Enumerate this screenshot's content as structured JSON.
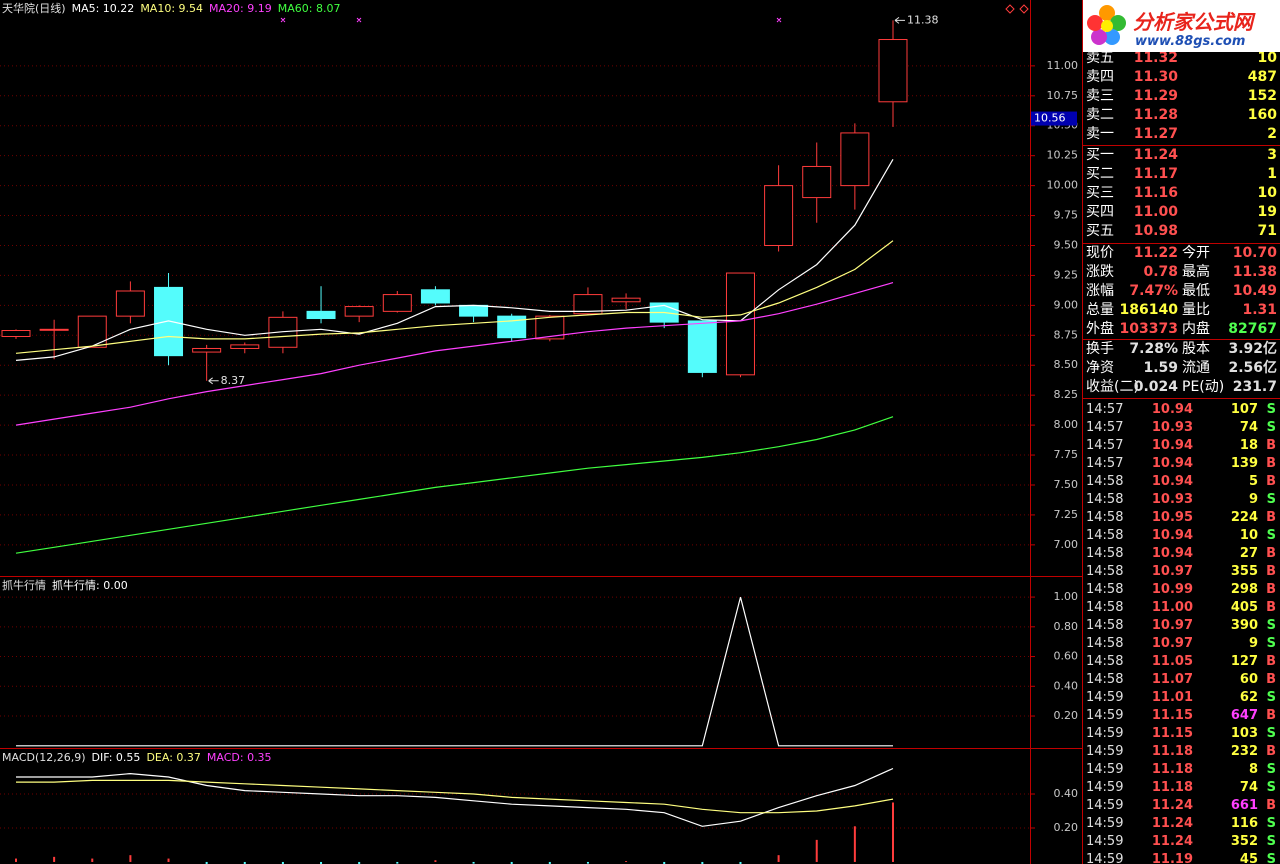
{
  "chart_data": [
    {
      "type": "candlestick",
      "title": "天华院(日线)",
      "open": [
        8.74,
        8.8,
        8.65,
        8.91,
        9.15,
        8.61,
        8.64,
        8.65,
        8.95,
        8.91,
        8.95,
        9.13,
        9.0,
        8.91,
        8.72,
        8.93,
        9.03,
        9.02,
        8.87,
        8.42,
        9.5,
        9.9,
        10.0,
        10.7
      ],
      "high": [
        8.8,
        8.88,
        8.91,
        9.2,
        9.27,
        8.67,
        8.69,
        8.95,
        9.16,
        9.0,
        9.12,
        9.16,
        9.0,
        8.93,
        8.92,
        9.15,
        9.1,
        9.02,
        8.87,
        9.27,
        10.17,
        10.36,
        10.52,
        11.38
      ],
      "low": [
        8.72,
        8.55,
        8.65,
        8.85,
        8.5,
        8.37,
        8.6,
        8.6,
        8.85,
        8.86,
        8.94,
        9.0,
        8.86,
        8.7,
        8.7,
        8.92,
        8.97,
        8.81,
        8.4,
        8.4,
        9.45,
        9.69,
        9.8,
        10.49
      ],
      "close": [
        8.79,
        8.8,
        8.91,
        9.12,
        8.58,
        8.64,
        8.67,
        8.9,
        8.89,
        8.99,
        9.09,
        9.02,
        8.91,
        8.73,
        8.91,
        9.09,
        9.06,
        8.86,
        8.44,
        9.27,
        10.0,
        10.16,
        10.44,
        11.22
      ],
      "up_color": "#ff3c3c",
      "down_color": "#54fcfc",
      "series": [
        {
          "name": "MA5: 10.22",
          "color": "#ffffff",
          "values": [
            8.54,
            8.57,
            8.66,
            8.8,
            8.87,
            8.8,
            8.75,
            8.78,
            8.8,
            8.76,
            8.85,
            8.99,
            9.0,
            8.98,
            8.95,
            8.95,
            8.96,
            9.0,
            8.88,
            8.87,
            9.13,
            9.34,
            9.67,
            10.22
          ]
        },
        {
          "name": "MA10: 9.54",
          "color": "#ffff80",
          "values": [
            8.6,
            8.63,
            8.66,
            8.7,
            8.74,
            8.72,
            8.72,
            8.74,
            8.76,
            8.77,
            8.8,
            8.83,
            8.85,
            8.87,
            8.9,
            8.92,
            8.94,
            8.94,
            8.9,
            8.92,
            9.02,
            9.15,
            9.3,
            9.54
          ]
        },
        {
          "name": "MA20: 9.19",
          "color": "#ff40ff",
          "values": [
            8.0,
            8.05,
            8.1,
            8.15,
            8.22,
            8.28,
            8.33,
            8.38,
            8.43,
            8.5,
            8.56,
            8.62,
            8.66,
            8.7,
            8.74,
            8.78,
            8.81,
            8.83,
            8.85,
            8.87,
            8.93,
            9.01,
            9.1,
            9.19
          ]
        },
        {
          "name": "MA60: 8.07",
          "color": "#40ff40",
          "values": [
            6.93,
            6.98,
            7.03,
            7.08,
            7.13,
            7.18,
            7.23,
            7.28,
            7.33,
            7.38,
            7.43,
            7.48,
            7.52,
            7.56,
            7.6,
            7.64,
            7.67,
            7.7,
            7.73,
            7.77,
            7.82,
            7.88,
            7.96,
            8.07
          ]
        }
      ],
      "ylim": [
        6.74,
        11.55
      ],
      "yticks": [
        {
          "value": 7,
          "label": "7.00"
        },
        {
          "value": 7.25,
          "label": "7.25"
        },
        {
          "value": 7.5,
          "label": "7.50"
        },
        {
          "value": 7.75,
          "label": "7.75"
        },
        {
          "value": 8,
          "label": "8.00"
        },
        {
          "value": 8.25,
          "label": "8.25"
        },
        {
          "value": 8.5,
          "label": "8.50"
        },
        {
          "value": 8.75,
          "label": "8.75"
        },
        {
          "value": 9,
          "label": "9.00"
        },
        {
          "value": 9.25,
          "label": "9.25"
        },
        {
          "value": 9.5,
          "label": "9.50"
        },
        {
          "value": 9.75,
          "label": "9.75"
        },
        {
          "value": 10,
          "label": "10.00"
        },
        {
          "value": 10.25,
          "label": "10.25"
        },
        {
          "value": 10.5,
          "label": "10.50"
        },
        {
          "value": 10.75,
          "label": "10.75"
        },
        {
          "value": 11,
          "label": "11.00"
        }
      ],
      "grid": true,
      "high_label": {
        "value": 11.38,
        "label": "11.38"
      },
      "low_label": {
        "value": 8.37,
        "label": "8.37"
      },
      "crosshair": {
        "value": 10.56,
        "label": "10.56"
      }
    },
    {
      "type": "line",
      "title": "抓牛行情",
      "series": [
        {
          "name": "抓牛行情: 0.00",
          "color": "#ffffff",
          "values": [
            0,
            0,
            0,
            0,
            0,
            0,
            0,
            0,
            0,
            0,
            0,
            0,
            0,
            0,
            0,
            0,
            0,
            0,
            0,
            1,
            0,
            0,
            0,
            0
          ]
        }
      ],
      "ylim": [
        -0.015,
        1.135
      ],
      "yticks": [
        {
          "value": 0.2,
          "label": "0.20"
        },
        {
          "value": 0.4,
          "label": "0.40"
        },
        {
          "value": 0.6,
          "label": "0.60"
        },
        {
          "value": 0.8,
          "label": "0.80"
        },
        {
          "value": 1,
          "label": "1.00"
        }
      ],
      "grid": true
    },
    {
      "type": "line",
      "title": "MACD(12,26,9)",
      "series": [
        {
          "name": "DIF: 0.55",
          "color": "#ffffff",
          "values": [
            0.5,
            0.5,
            0.5,
            0.52,
            0.5,
            0.45,
            0.42,
            0.41,
            0.4,
            0.39,
            0.39,
            0.38,
            0.36,
            0.34,
            0.33,
            0.32,
            0.31,
            0.29,
            0.21,
            0.24,
            0.32,
            0.39,
            0.45,
            0.55
          ]
        },
        {
          "name": "DEA: 0.37",
          "color": "#ffff80",
          "values": [
            0.47,
            0.47,
            0.48,
            0.48,
            0.48,
            0.47,
            0.46,
            0.45,
            0.44,
            0.43,
            0.42,
            0.41,
            0.4,
            0.38,
            0.37,
            0.36,
            0.35,
            0.34,
            0.31,
            0.29,
            0.29,
            0.3,
            0.33,
            0.37
          ]
        },
        {
          "name": "MACD: 0.35",
          "color": "#ff40ff",
          "style": "bar",
          "bar_color": "#ff3c3c",
          "negative_color": "#54fcfc",
          "values": [
            0.02,
            0.03,
            0.02,
            0.04,
            0.02,
            -0.02,
            -0.04,
            -0.03,
            -0.02,
            -0.03,
            -0.01,
            0.01,
            -0.01,
            -0.03,
            -0.03,
            -0.01,
            0.005,
            -0.02,
            -0.08,
            -0.05,
            0.04,
            0.13,
            0.21,
            0.35
          ]
        }
      ],
      "ylim": [
        -0.012,
        0.665
      ],
      "yticks": [
        {
          "value": 0.2,
          "label": "0.20"
        },
        {
          "value": 0.4,
          "label": "0.40"
        }
      ],
      "grid": true
    }
  ],
  "quote_panel": {
    "logo": {
      "title": "分析家公式网",
      "url": "www.88gs.com"
    },
    "order_book": {
      "price_color": "#ff5050",
      "volume_color": "#ffff40",
      "sell": [
        [
          "卖五",
          "11.32",
          "10"
        ],
        [
          "卖四",
          "11.30",
          "487"
        ],
        [
          "卖三",
          "11.29",
          "152"
        ],
        [
          "卖二",
          "11.28",
          "160"
        ],
        [
          "卖一",
          "11.27",
          "2"
        ]
      ],
      "buy": [
        [
          "买一",
          "11.24",
          "3"
        ],
        [
          "买二",
          "11.17",
          "1"
        ],
        [
          "买三",
          "11.16",
          "10"
        ],
        [
          "买四",
          "11.00",
          "19"
        ],
        [
          "买五",
          "10.98",
          "71"
        ]
      ]
    },
    "stats": [
      {
        "cells": [
          "现价",
          "11.22",
          "今开",
          "10.70"
        ],
        "colors": [
          "#ffffff",
          "#ff5050",
          "#ffffff",
          "#ff5050"
        ]
      },
      {
        "cells": [
          "涨跌",
          "0.78",
          "最高",
          "11.38"
        ],
        "colors": [
          "#ffffff",
          "#ff5050",
          "#ffffff",
          "#ff5050"
        ]
      },
      {
        "cells": [
          "涨幅",
          "7.47%",
          "最低",
          "10.49"
        ],
        "colors": [
          "#ffffff",
          "#ff5050",
          "#ffffff",
          "#ff5050"
        ]
      },
      {
        "cells": [
          "总量",
          "186140",
          "量比",
          "1.31"
        ],
        "colors": [
          "#ffffff",
          "#ffff40",
          "#ffffff",
          "#ff5050"
        ]
      },
      {
        "cells": [
          "外盘",
          "103373",
          "内盘",
          "82767"
        ],
        "colors": [
          "#ffffff",
          "#ff5050",
          "#ffffff",
          "#50ff50"
        ]
      }
    ],
    "capital": [
      {
        "cells": [
          "换手",
          "7.28%",
          "股本",
          "3.92亿"
        ],
        "colors": [
          "#ffffff",
          "#e0e0e0",
          "#ffffff",
          "#e0e0e0"
        ]
      },
      {
        "cells": [
          "净资",
          "1.59",
          "流通",
          "2.56亿"
        ],
        "colors": [
          "#ffffff",
          "#e0e0e0",
          "#ffffff",
          "#e0e0e0"
        ]
      },
      {
        "cells": [
          "收益(二)",
          "0.024",
          "PE(动)",
          "231.7"
        ],
        "colors": [
          "#ffffff",
          "#e0e0e0",
          "#ffffff",
          "#e0e0e0"
        ]
      }
    ],
    "trades": {
      "colors": {
        "time": "#e0e0e0",
        "price": "#ff5050",
        "volume": "#ffff40",
        "B": "#ff5050",
        "S": "#50ff50"
      },
      "rows": [
        {
          "time": "14:57",
          "price": "10.94",
          "volume": "107",
          "side": "S"
        },
        {
          "time": "14:57",
          "price": "10.93",
          "volume": "74",
          "side": "S"
        },
        {
          "time": "14:57",
          "price": "10.94",
          "volume": "18",
          "side": "B"
        },
        {
          "time": "14:57",
          "price": "10.94",
          "volume": "139",
          "side": "B"
        },
        {
          "time": "14:58",
          "price": "10.94",
          "volume": "5",
          "side": "B"
        },
        {
          "time": "14:58",
          "price": "10.93",
          "volume": "9",
          "side": "S"
        },
        {
          "time": "14:58",
          "price": "10.95",
          "volume": "224",
          "side": "B"
        },
        {
          "time": "14:58",
          "price": "10.94",
          "volume": "10",
          "side": "S"
        },
        {
          "time": "14:58",
          "price": "10.94",
          "volume": "27",
          "side": "B"
        },
        {
          "time": "14:58",
          "price": "10.97",
          "volume": "355",
          "side": "B"
        },
        {
          "time": "14:58",
          "price": "10.99",
          "volume": "298",
          "side": "B"
        },
        {
          "time": "14:58",
          "price": "11.00",
          "volume": "405",
          "side": "B"
        },
        {
          "time": "14:58",
          "price": "10.97",
          "volume": "390",
          "side": "S"
        },
        {
          "time": "14:58",
          "price": "10.97",
          "volume": "9",
          "side": "S"
        },
        {
          "time": "14:58",
          "price": "11.05",
          "volume": "127",
          "side": "B"
        },
        {
          "time": "14:58",
          "price": "11.07",
          "volume": "60",
          "side": "B"
        },
        {
          "time": "14:59",
          "price": "11.01",
          "volume": "62",
          "side": "S"
        },
        {
          "time": "14:59",
          "price": "11.15",
          "volume": "647",
          "side": "B",
          "volume_color": "#ff40ff"
        },
        {
          "time": "14:59",
          "price": "11.15",
          "volume": "103",
          "side": "S"
        },
        {
          "time": "14:59",
          "price": "11.18",
          "volume": "232",
          "side": "B"
        },
        {
          "time": "14:59",
          "price": "11.18",
          "volume": "8",
          "side": "S"
        },
        {
          "time": "14:59",
          "price": "11.18",
          "volume": "74",
          "side": "S"
        },
        {
          "time": "14:59",
          "price": "11.24",
          "volume": "661",
          "side": "B",
          "volume_color": "#ff40ff"
        },
        {
          "time": "14:59",
          "price": "11.24",
          "volume": "116",
          "side": "S"
        },
        {
          "time": "14:59",
          "price": "11.24",
          "volume": "352",
          "side": "S"
        },
        {
          "time": "14:59",
          "price": "11.19",
          "volume": "45",
          "side": "S"
        }
      ]
    }
  }
}
